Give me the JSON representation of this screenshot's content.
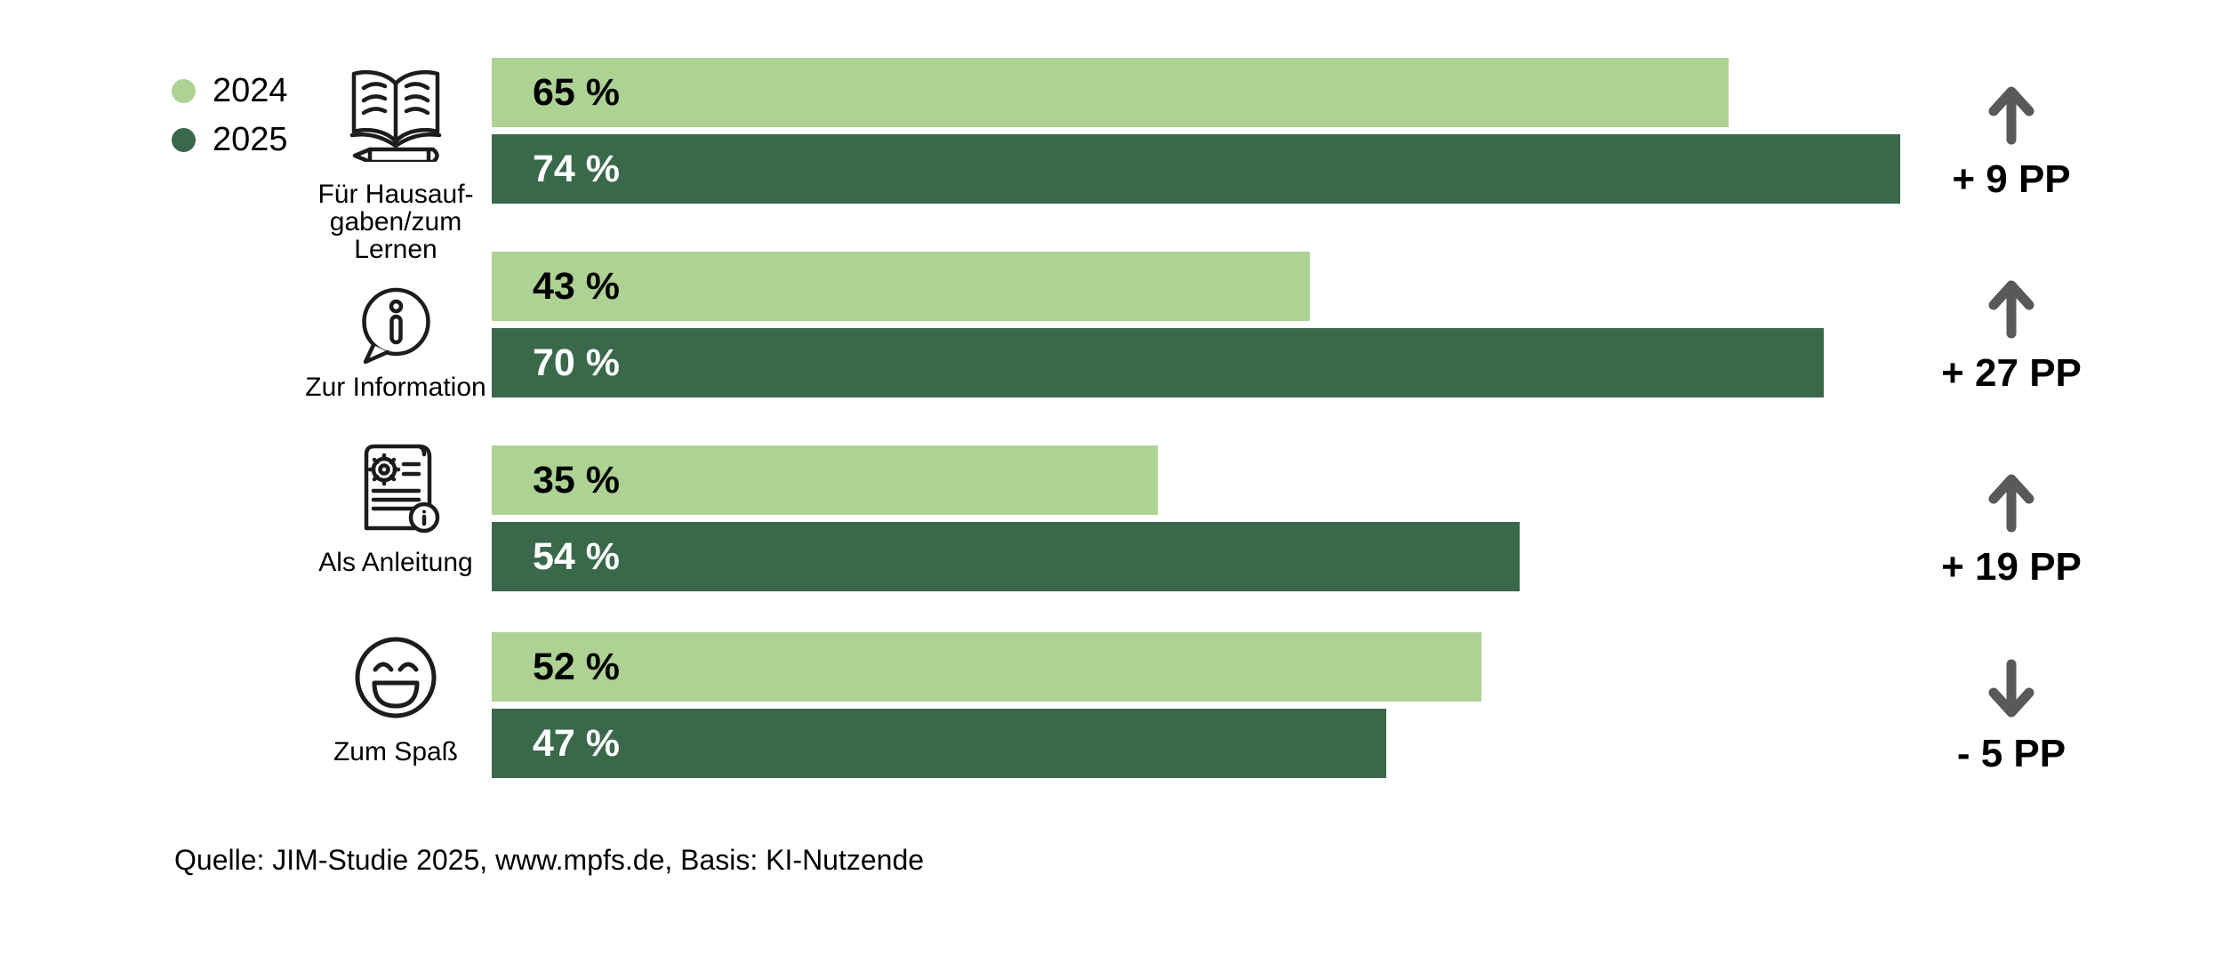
{
  "chart_data": {
    "type": "bar",
    "orientation": "horizontal",
    "title": "",
    "unit": "%",
    "categories": [
      "Für Hausaufgaben/zum Lernen",
      "Zur Information",
      "Als Anleitung",
      "Zum Spaß"
    ],
    "series": [
      {
        "name": "2024",
        "color": "#AED293",
        "values": [
          65,
          43,
          35,
          52
        ]
      },
      {
        "name": "2025",
        "color": "#39684A",
        "values": [
          74,
          70,
          54,
          47
        ]
      }
    ],
    "deltas_pp": [
      9,
      27,
      19,
      -5
    ],
    "xlim": [
      0,
      100
    ],
    "grid": false,
    "legend_position": "top-left",
    "value_labels_inside_bars": true
  },
  "legend": {
    "items": [
      {
        "label": "2024",
        "color": "#AED293"
      },
      {
        "label": "2025",
        "color": "#39684A"
      }
    ]
  },
  "rows": [
    {
      "icon": "book-pencil-icon",
      "label_lines": [
        "Für Hausauf-",
        "gaben/zum",
        "Lernen"
      ],
      "bar_labels": [
        "65 %",
        "74 %"
      ],
      "delta_label": "+ 9 PP",
      "delta_direction": "up"
    },
    {
      "icon": "info-speech-bubble-icon",
      "label_lines": [
        "Zur Information",
        "",
        ""
      ],
      "bar_labels": [
        "43 %",
        "70 %"
      ],
      "delta_label": "+ 27 PP",
      "delta_direction": "up"
    },
    {
      "icon": "instructions-scroll-icon",
      "label_lines": [
        "Als Anleitung",
        "",
        ""
      ],
      "bar_labels": [
        "35 %",
        "54 %"
      ],
      "delta_label": "+ 19 PP",
      "delta_direction": "up"
    },
    {
      "icon": "laughing-smiley-icon",
      "label_lines": [
        "Zum Spaß",
        "",
        ""
      ],
      "bar_labels": [
        "52 %",
        "47 %"
      ],
      "delta_label": "- 5 PP",
      "delta_direction": "down"
    }
  ],
  "colors": {
    "bar_2024": "#AED293",
    "bar_2025": "#39684A",
    "arrow": "#595959",
    "text": "#000000"
  },
  "source": "Quelle: JIM-Studie 2025, www.mpfs.de, Basis: KI-Nutzende"
}
